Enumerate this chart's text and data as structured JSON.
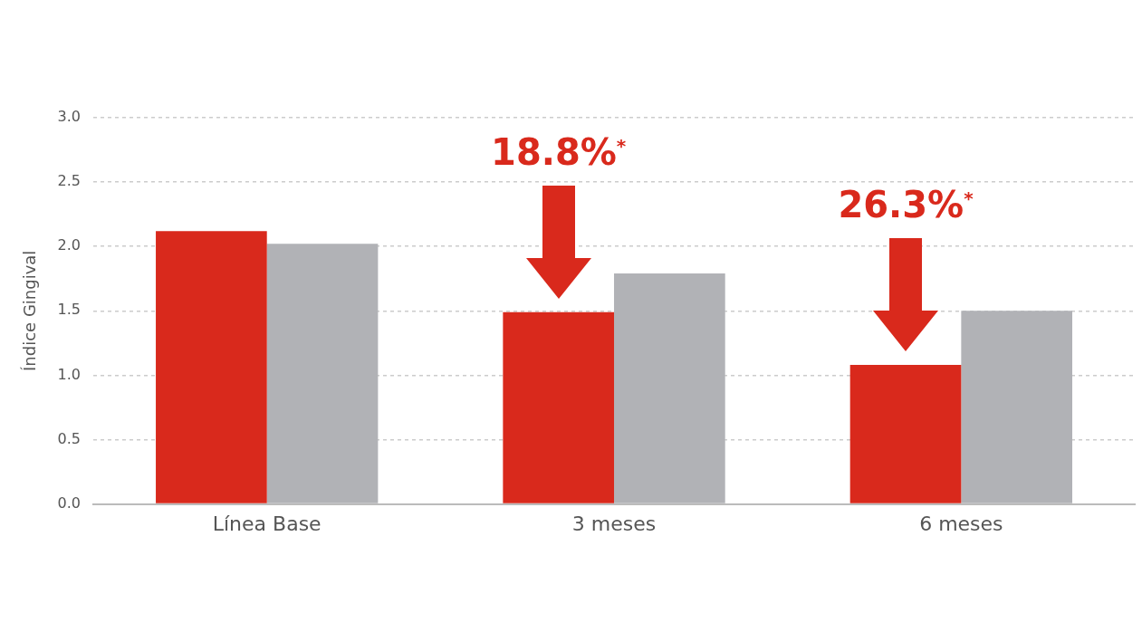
{
  "chart_data": {
    "type": "bar",
    "ylabel": "Índice Gingival",
    "categories": [
      "Línea Base",
      "3 meses",
      "6 meses"
    ],
    "series": [
      {
        "color": "#d9291c",
        "values": [
          2.12,
          1.49,
          1.08
        ]
      },
      {
        "color": "#b1b2b6",
        "values": [
          2.02,
          1.79,
          1.5
        ]
      }
    ],
    "ylim": [
      0,
      3
    ],
    "yticks": [
      {
        "value": 0,
        "label": "0.0"
      },
      {
        "value": 0.5,
        "label": "0.5"
      },
      {
        "value": 1,
        "label": "1.0"
      },
      {
        "value": 1.5,
        "label": "1.5"
      },
      {
        "value": 2,
        "label": "2.0"
      },
      {
        "value": 2.5,
        "label": "2.5"
      },
      {
        "value": 3,
        "label": "3.0"
      }
    ],
    "grid": "y",
    "legend": false,
    "annotations": [
      "18.8%$^{*}$",
      "26.3%$^{*}$"
    ]
  }
}
